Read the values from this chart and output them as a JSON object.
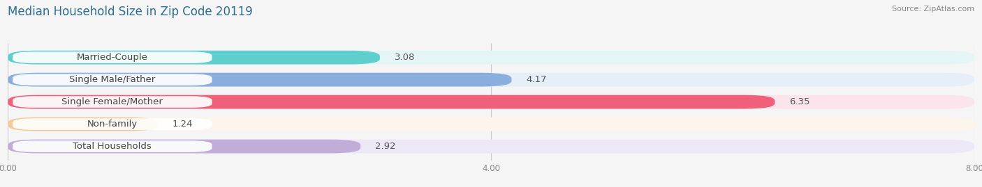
{
  "title": "Median Household Size in Zip Code 20119",
  "source": "Source: ZipAtlas.com",
  "categories": [
    "Married-Couple",
    "Single Male/Father",
    "Single Female/Mother",
    "Non-family",
    "Total Households"
  ],
  "values": [
    3.08,
    4.17,
    6.35,
    1.24,
    2.92
  ],
  "bar_colors": [
    "#5ecfcc",
    "#8aaede",
    "#f0607a",
    "#f5c99a",
    "#c0aed8"
  ],
  "bar_bg_colors": [
    "#e4f5f5",
    "#e6eef8",
    "#fce4ec",
    "#fdf5ec",
    "#ede8f5"
  ],
  "xlim": [
    0,
    8.0
  ],
  "xticks": [
    0.0,
    4.0,
    8.0
  ],
  "label_fontsize": 9.5,
  "value_fontsize": 9.5,
  "title_fontsize": 12,
  "title_color": "#2e6e8e",
  "bar_height": 0.62,
  "figsize": [
    14.06,
    2.69
  ],
  "dpi": 100
}
